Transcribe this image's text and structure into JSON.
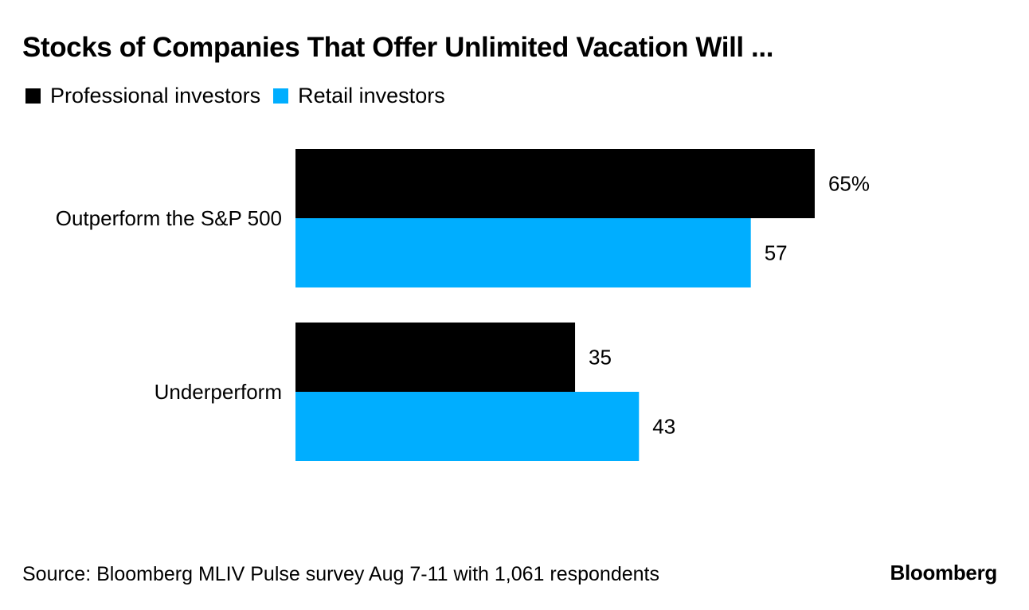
{
  "chart_data": {
    "type": "bar",
    "orientation": "horizontal",
    "title": "Stocks of Companies That Offer Unlimited Vacation Will ...",
    "categories": [
      "Outperform the S&P 500",
      "Underperform"
    ],
    "series": [
      {
        "name": "Professional investors",
        "color": "#000000",
        "values": [
          65,
          35
        ],
        "labels": [
          "65%",
          "35"
        ]
      },
      {
        "name": "Retail investors",
        "color": "#00AEFF",
        "values": [
          57,
          43
        ],
        "labels": [
          "57",
          "43"
        ]
      }
    ],
    "xlim": [
      0,
      100
    ],
    "legend_position": "top-left",
    "grid": false,
    "xlabel": "",
    "ylabel": ""
  },
  "footer": {
    "source": "Source: Bloomberg MLIV Pulse survey Aug 7-11 with 1,061 respondents",
    "brand": "Bloomberg"
  }
}
